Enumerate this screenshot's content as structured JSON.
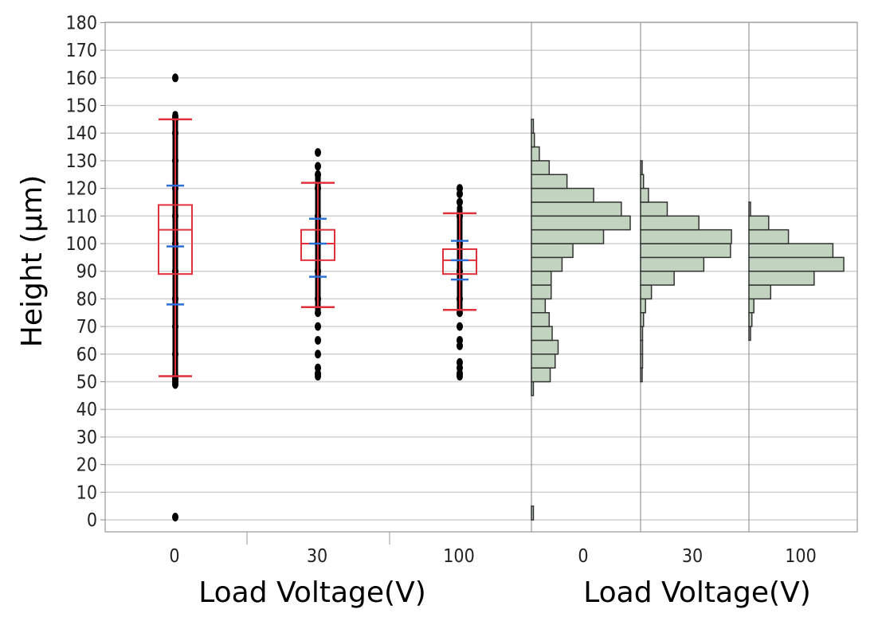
{
  "chart_data": [
    {
      "type": "box",
      "ylabel": "Height (μm)",
      "xlabel": "Load Voltage(V)",
      "ylim": [
        0,
        180
      ],
      "yticks": [
        0,
        10,
        20,
        30,
        40,
        50,
        60,
        70,
        80,
        90,
        100,
        110,
        120,
        130,
        140,
        150,
        160,
        170,
        180
      ],
      "categories": [
        "0",
        "30",
        "100"
      ],
      "grid": true,
      "boxes": [
        {
          "category": "0",
          "q1": 89,
          "median": 105,
          "q3": 114,
          "mean": 99,
          "whisker_low": 52,
          "whisker_high": 145,
          "sd_low": 78,
          "sd_high": 121,
          "points": [
            49,
            50,
            51,
            52,
            60,
            70,
            80,
            90,
            100,
            110,
            120,
            130,
            140,
            145,
            146,
            160,
            1
          ]
        },
        {
          "category": "30",
          "q1": 94,
          "median": 100,
          "q3": 105,
          "mean": 100,
          "whisker_low": 77,
          "whisker_high": 122,
          "sd_low": 88,
          "sd_high": 109,
          "points": [
            52,
            53,
            55,
            60,
            65,
            70,
            75,
            80,
            90,
            100,
            110,
            120,
            125,
            128,
            133
          ]
        },
        {
          "category": "100",
          "q1": 89,
          "median": 94,
          "q3": 98,
          "mean": 94,
          "whisker_low": 76,
          "whisker_high": 111,
          "sd_low": 87,
          "sd_high": 101,
          "points": [
            52,
            53,
            55,
            57,
            63,
            65,
            70,
            75,
            80,
            90,
            100,
            110,
            115,
            118,
            120
          ]
        }
      ]
    },
    {
      "type": "histogram",
      "xlabel": "Load Voltage(V)",
      "ylim": [
        0,
        180
      ],
      "categories": [
        "0",
        "30",
        "100"
      ],
      "bin_width": 5,
      "series": [
        {
          "category": "0",
          "bins": [
            [
              0,
              0.02
            ],
            [
              45,
              0.02
            ],
            [
              50,
              0.19
            ],
            [
              55,
              0.24
            ],
            [
              60,
              0.27
            ],
            [
              65,
              0.21
            ],
            [
              70,
              0.18
            ],
            [
              75,
              0.14
            ],
            [
              80,
              0.2
            ],
            [
              85,
              0.2
            ],
            [
              90,
              0.31
            ],
            [
              95,
              0.42
            ],
            [
              100,
              0.73
            ],
            [
              105,
              1.0
            ],
            [
              110,
              0.91
            ],
            [
              115,
              0.63
            ],
            [
              120,
              0.36
            ],
            [
              125,
              0.18
            ],
            [
              130,
              0.08
            ],
            [
              135,
              0.03
            ],
            [
              140,
              0.02
            ]
          ]
        },
        {
          "category": "30",
          "bins": [
            [
              50,
              0.01
            ],
            [
              55,
              0.02
            ],
            [
              60,
              0.02
            ],
            [
              65,
              0.02
            ],
            [
              70,
              0.03
            ],
            [
              75,
              0.05
            ],
            [
              80,
              0.11
            ],
            [
              85,
              0.34
            ],
            [
              90,
              0.64
            ],
            [
              95,
              0.91
            ],
            [
              100,
              0.92
            ],
            [
              105,
              0.59
            ],
            [
              110,
              0.27
            ],
            [
              115,
              0.08
            ],
            [
              120,
              0.03
            ],
            [
              125,
              0.01
            ]
          ]
        },
        {
          "category": "100",
          "bins": [
            [
              65,
              0.01
            ],
            [
              70,
              0.03
            ],
            [
              75,
              0.05
            ],
            [
              80,
              0.22
            ],
            [
              85,
              0.66
            ],
            [
              90,
              0.96
            ],
            [
              95,
              0.85
            ],
            [
              100,
              0.4
            ],
            [
              105,
              0.2
            ],
            [
              110,
              0.01
            ]
          ]
        }
      ]
    }
  ]
}
